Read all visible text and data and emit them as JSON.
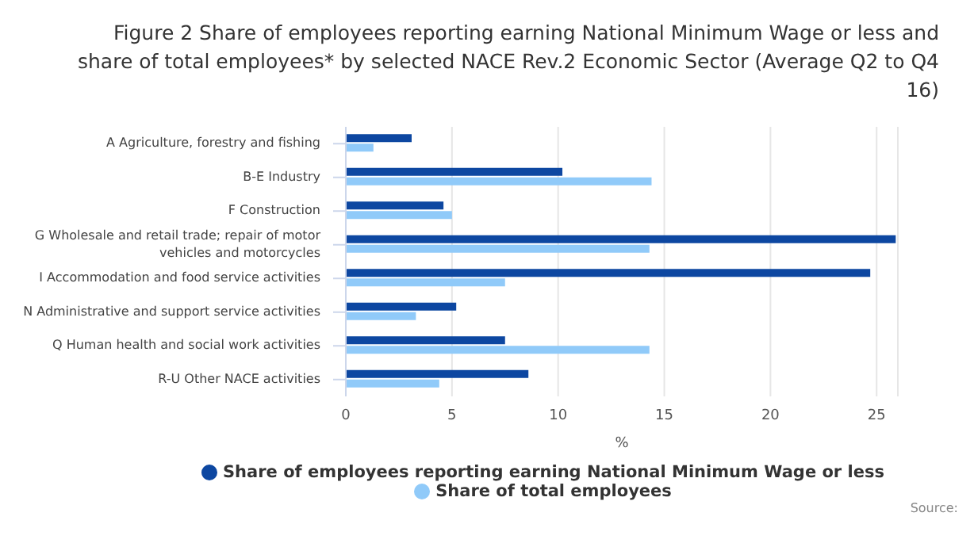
{
  "chart_data": {
    "type": "bar",
    "orientation": "horizontal",
    "title": "Figure 2 Share of employees reporting earning National Minimum Wage or less and share of total employees* by selected NACE Rev.2 Economic Sector (Average Q2 to Q4 16)",
    "xlabel": "%",
    "categories": [
      "A Agriculture, forestry and fishing",
      "B-E Industry",
      "F Construction",
      "G Wholesale and retail trade; repair of motor vehicles and motorcycles",
      "I Accommodation and food service activities",
      "N Administrative and support service activities",
      "Q Human health and social work activities",
      "R-U Other NACE activities"
    ],
    "series": [
      {
        "name": "Share of employees reporting earning National Minimum Wage or less",
        "color": "#0d47a1",
        "values": [
          3.1,
          10.2,
          4.6,
          25.9,
          24.7,
          5.2,
          7.5,
          8.6
        ]
      },
      {
        "name": "Share of total employees",
        "color": "#90caf9",
        "values": [
          1.3,
          14.4,
          5.0,
          14.3,
          7.5,
          3.3,
          14.3,
          4.4
        ]
      }
    ],
    "xlim": [
      0,
      26
    ],
    "xticks": [
      0,
      5,
      10,
      15,
      20,
      25
    ],
    "grid": "x",
    "legend": "bottom",
    "marker": "circle",
    "annotations": [
      "Source:"
    ]
  }
}
